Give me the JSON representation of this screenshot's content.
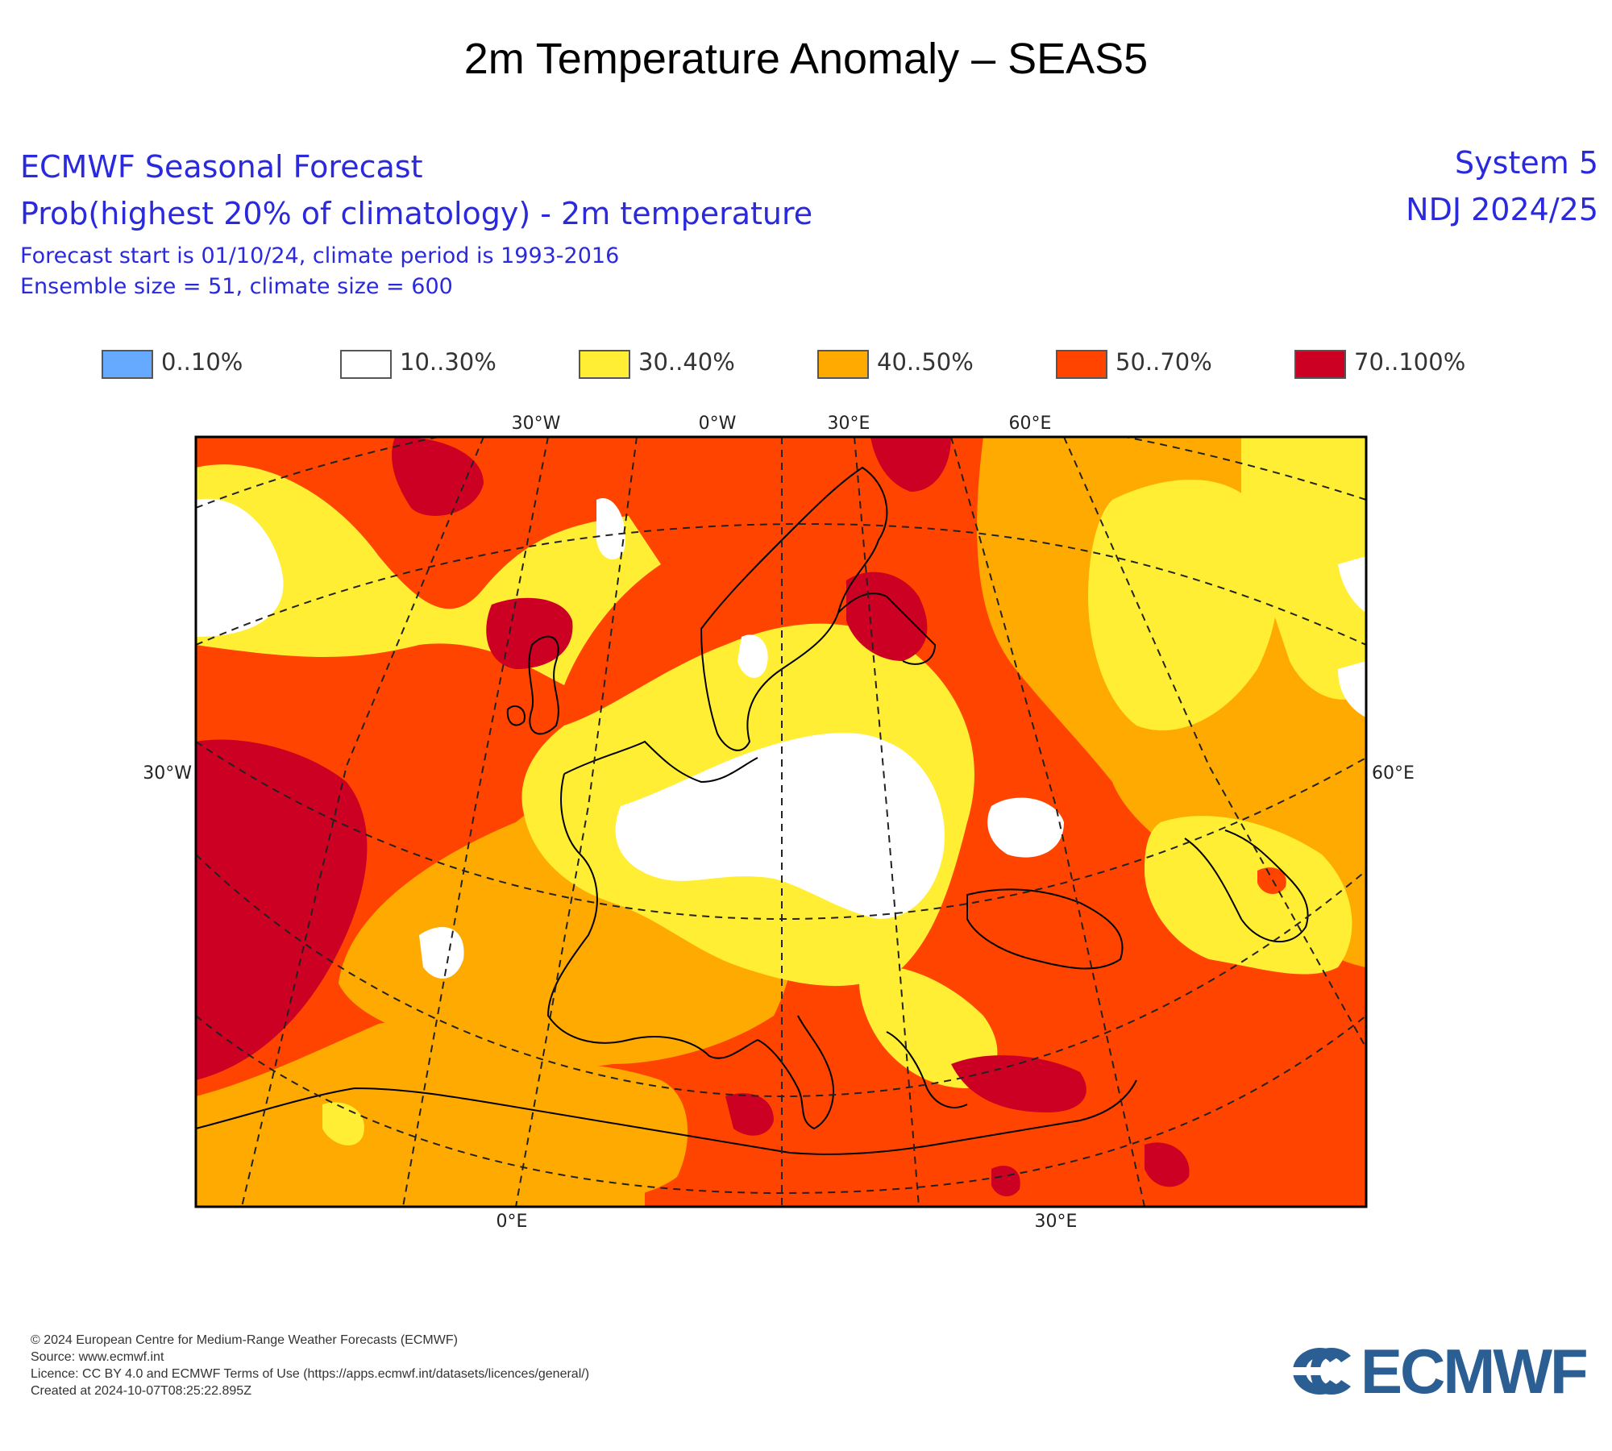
{
  "title": "2m Temperature Anomaly – SEAS5",
  "header": {
    "line1": "ECMWF Seasonal Forecast",
    "line2": "Prob(highest 20% of climatology) - 2m temperature",
    "line3": "Forecast start is 01/10/24, climate period is 1993-2016",
    "line4": "Ensemble size = 51, climate size = 600",
    "system": "System 5",
    "period": "NDJ 2024/25"
  },
  "legend": [
    {
      "label": "0..10%",
      "color": "#66aaff"
    },
    {
      "label": "10..30%",
      "color": "#ffffff"
    },
    {
      "label": "30..40%",
      "color": "#ffee33"
    },
    {
      "label": "40..50%",
      "color": "#ffaa00"
    },
    {
      "label": "50..70%",
      "color": "#ff4400"
    },
    {
      "label": "70..100%",
      "color": "#cc0022"
    }
  ],
  "map": {
    "top_labels": [
      "30°W",
      "0°W",
      "30°E",
      "60°E"
    ],
    "side_labels": {
      "left": "30°W",
      "right": "60°E"
    },
    "bottom_labels": [
      "0°E",
      "30°E"
    ]
  },
  "footer": {
    "copyright": "© 2024 European Centre for Medium-Range Weather Forecasts (ECMWF)",
    "source": "Source: www.ecmwf.int",
    "licence": "Licence: CC BY 4.0 and ECMWF Terms of Use (https://apps.ecmwf.int/datasets/licences/general/)",
    "created": "Created at 2024-10-07T08:25:22.895Z"
  },
  "logo": {
    "text": "ECMWF",
    "color": "#2b5e93"
  }
}
